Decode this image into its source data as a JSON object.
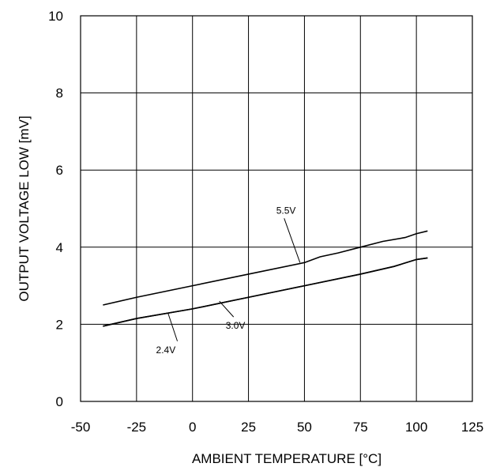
{
  "chart_data": {
    "type": "line",
    "xlabel": "AMBIENT TEMPERATURE [°C]",
    "ylabel": "OUTPUT VOLTAGE LOW [mV]",
    "xlim": [
      -50,
      125
    ],
    "ylim": [
      0,
      10
    ],
    "xticks": [
      "-50",
      "-25",
      "0",
      "25",
      "50",
      "75",
      "100",
      "125"
    ],
    "yticks": [
      "0",
      "2",
      "4",
      "6",
      "8",
      "10"
    ],
    "grid": true,
    "series": [
      {
        "name": "5.5V",
        "x": [
          -40,
          -25,
          0,
          25,
          50,
          57,
          65,
          75,
          85,
          95,
          100,
          105
        ],
        "values": [
          2.5,
          2.7,
          3.0,
          3.3,
          3.6,
          3.75,
          3.85,
          4.0,
          4.15,
          4.25,
          4.35,
          4.42
        ]
      },
      {
        "name": "3.0V",
        "x": [
          -40,
          -25,
          0,
          25,
          50,
          75,
          90,
          100,
          105
        ],
        "values": [
          1.95,
          2.15,
          2.4,
          2.7,
          3.0,
          3.3,
          3.5,
          3.68,
          3.72
        ]
      },
      {
        "name": "2.4V",
        "x": [
          -40,
          -25,
          0,
          25,
          50,
          75,
          90,
          100,
          105
        ],
        "values": [
          1.95,
          2.15,
          2.4,
          2.7,
          3.0,
          3.3,
          3.5,
          3.68,
          3.72
        ]
      }
    ],
    "annotations": [
      {
        "text": "5.5V",
        "series": "5.5V",
        "x": 48,
        "y": 3.6
      },
      {
        "text": "3.0V",
        "series": "3.0V",
        "x": 12,
        "y": 2.6
      },
      {
        "text": "2.4V",
        "series": "2.4V",
        "x": -11,
        "y": 2.3
      }
    ]
  }
}
